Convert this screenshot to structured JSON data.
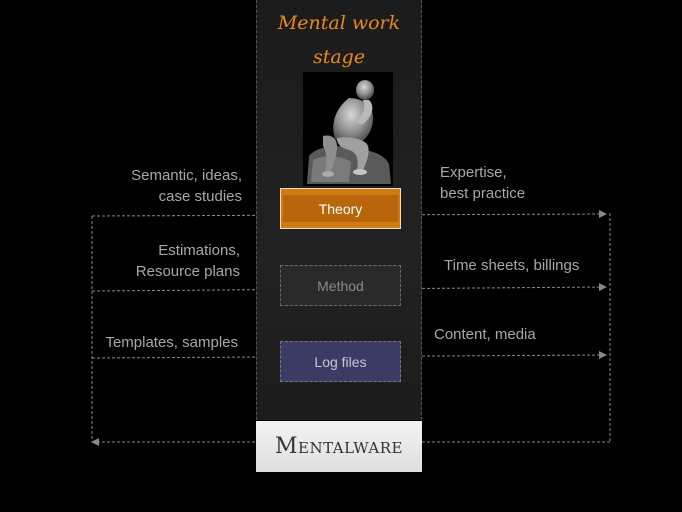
{
  "stage": {
    "title_line1": "Mental work",
    "title_line2": "stage"
  },
  "boxes": {
    "theory": "Theory",
    "method": "Method",
    "log": "Log files"
  },
  "brand": "Mentalware",
  "left_labels": {
    "a_line1": "Semantic, ideas,",
    "a_line2": "case studies",
    "b_line1": "Estimations,",
    "b_line2": "Resource plans",
    "c_line1": "Templates, samples"
  },
  "right_labels": {
    "a_line1": "Expertise,",
    "a_line2": "best practice",
    "b_line1": "Time sheets, billings",
    "c_line1": "Content, media"
  },
  "colors": {
    "accent": "#e8891e",
    "theory": "#d07a14",
    "log": "#3b3b63",
    "line": "#8a8a8a"
  },
  "icons": {
    "statue": "thinker-statue-icon"
  }
}
